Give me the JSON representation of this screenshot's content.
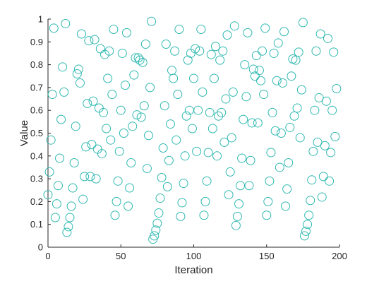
{
  "chart_data": {
    "type": "scatter",
    "title": "",
    "xlabel": "Iteration",
    "ylabel": "Value",
    "xlim": [
      0,
      200
    ],
    "ylim": [
      0,
      1
    ],
    "xticks": [
      "0",
      "50",
      "100",
      "150",
      "200"
    ],
    "yticks": [
      "0",
      "0.1",
      "0.2",
      "0.3",
      "0.4",
      "0.5",
      "0.6",
      "0.7",
      "0.8",
      "0.9",
      "1"
    ],
    "grid": false,
    "marker": "open-circle",
    "color": "#2fb8b0",
    "series": [
      {
        "points": [
          [
            0,
            0.23
          ],
          [
            1,
            0.33
          ],
          [
            2,
            0.47
          ],
          [
            3,
            0.67
          ],
          [
            4,
            0.96
          ],
          [
            5,
            0.13
          ],
          [
            6,
            0.19
          ],
          [
            7,
            0.27
          ],
          [
            8,
            0.39
          ],
          [
            9,
            0.56
          ],
          [
            10,
            0.79
          ],
          [
            11,
            0.68
          ],
          [
            12,
            0.98
          ],
          [
            13,
            0.065
          ],
          [
            14,
            0.09
          ],
          [
            15,
            0.13
          ],
          [
            16,
            0.18
          ],
          [
            17,
            0.26
          ],
          [
            18,
            0.37
          ],
          [
            19,
            0.53
          ],
          [
            20,
            0.76
          ],
          [
            21,
            0.78
          ],
          [
            22,
            0.72
          ],
          [
            23,
            0.935
          ],
          [
            24,
            0.21
          ],
          [
            25,
            0.31
          ],
          [
            26,
            0.44
          ],
          [
            27,
            0.63
          ],
          [
            28,
            0.905
          ],
          [
            29,
            0.31
          ],
          [
            30,
            0.45
          ],
          [
            31,
            0.64
          ],
          [
            32,
            0.91
          ],
          [
            33,
            0.3
          ],
          [
            34,
            0.43
          ],
          [
            35,
            0.61
          ],
          [
            36,
            0.87
          ],
          [
            37,
            0.41
          ],
          [
            38,
            0.59
          ],
          [
            39,
            0.845
          ],
          [
            40,
            0.52
          ],
          [
            41,
            0.74
          ],
          [
            42,
            0.86
          ],
          [
            43,
            0.47
          ],
          [
            44,
            0.67
          ],
          [
            45,
            0.955
          ],
          [
            46,
            0.14
          ],
          [
            47,
            0.2
          ],
          [
            48,
            0.29
          ],
          [
            49,
            0.42
          ],
          [
            50,
            0.6
          ],
          [
            51,
            0.85
          ],
          [
            52,
            0.5
          ],
          [
            53,
            0.71
          ],
          [
            54,
            0.94
          ],
          [
            55,
            0.18
          ],
          [
            56,
            0.26
          ],
          [
            57,
            0.37
          ],
          [
            58,
            0.53
          ],
          [
            59,
            0.755
          ],
          [
            60,
            0.83
          ],
          [
            61,
            0.58
          ],
          [
            62,
            0.83
          ],
          [
            63,
            0.82
          ],
          [
            64,
            0.57
          ],
          [
            65,
            0.81
          ],
          [
            66,
            0.62
          ],
          [
            67,
            0.89
          ],
          [
            68,
            0.345
          ],
          [
            69,
            0.49
          ],
          [
            70,
            0.7
          ],
          [
            71,
            0.99
          ],
          [
            72,
            0.035
          ],
          [
            73,
            0.05
          ],
          [
            74,
            0.075
          ],
          [
            75,
            0.105
          ],
          [
            76,
            0.15
          ],
          [
            77,
            0.215
          ],
          [
            78,
            0.305
          ],
          [
            79,
            0.435
          ],
          [
            80,
            0.62
          ],
          [
            81,
            0.89
          ],
          [
            82,
            0.265
          ],
          [
            83,
            0.38
          ],
          [
            84,
            0.54
          ],
          [
            85,
            0.775
          ],
          [
            86,
            0.74
          ],
          [
            87,
            0.86
          ],
          [
            88,
            0.47
          ],
          [
            89,
            0.67
          ],
          [
            90,
            0.955
          ],
          [
            91,
            0.135
          ],
          [
            92,
            0.195
          ],
          [
            93,
            0.28
          ],
          [
            94,
            0.4
          ],
          [
            95,
            0.575
          ],
          [
            96,
            0.82
          ],
          [
            97,
            0.6
          ],
          [
            98,
            0.85
          ],
          [
            99,
            0.52
          ],
          [
            100,
            0.74
          ],
          [
            101,
            0.87
          ],
          [
            102,
            0.42
          ],
          [
            103,
            0.6
          ],
          [
            104,
            0.86
          ],
          [
            105,
            0.955
          ],
          [
            106,
            0.68
          ],
          [
            107,
            0.14
          ],
          [
            108,
            0.2
          ],
          [
            109,
            0.29
          ],
          [
            110,
            0.415
          ],
          [
            111,
            0.59
          ],
          [
            112,
            0.845
          ],
          [
            113,
            0.52
          ],
          [
            114,
            0.74
          ],
          [
            115,
            0.88
          ],
          [
            116,
            0.4
          ],
          [
            117,
            0.575
          ],
          [
            118,
            0.82
          ],
          [
            119,
            0.59
          ],
          [
            120,
            0.86
          ],
          [
            121,
            0.46
          ],
          [
            122,
            0.65
          ],
          [
            123,
            0.93
          ],
          [
            124,
            0.23
          ],
          [
            125,
            0.33
          ],
          [
            126,
            0.48
          ],
          [
            127,
            0.68
          ],
          [
            128,
            0.97
          ],
          [
            129,
            0.095
          ],
          [
            130,
            0.135
          ],
          [
            131,
            0.19
          ],
          [
            132,
            0.27
          ],
          [
            133,
            0.39
          ],
          [
            134,
            0.56
          ],
          [
            135,
            0.8
          ],
          [
            136,
            0.66
          ],
          [
            137,
            0.94
          ],
          [
            138,
            0.27
          ],
          [
            139,
            0.38
          ],
          [
            140,
            0.545
          ],
          [
            141,
            0.78
          ],
          [
            142,
            0.75
          ],
          [
            143,
            0.84
          ],
          [
            144,
            0.545
          ],
          [
            145,
            0.775
          ],
          [
            146,
            0.73
          ],
          [
            147,
            0.86
          ],
          [
            148,
            0.67
          ],
          [
            149,
            0.96
          ],
          [
            150,
            0.14
          ],
          [
            151,
            0.2
          ],
          [
            152,
            0.29
          ],
          [
            153,
            0.415
          ],
          [
            154,
            0.59
          ],
          [
            155,
            0.85
          ],
          [
            156,
            0.51
          ],
          [
            157,
            0.73
          ],
          [
            158,
            0.895
          ],
          [
            159,
            0.35
          ],
          [
            160,
            0.5
          ],
          [
            161,
            0.72
          ],
          [
            162,
            0.945
          ],
          [
            163,
            0.18
          ],
          [
            164,
            0.255
          ],
          [
            165,
            0.37
          ],
          [
            166,
            0.525
          ],
          [
            167,
            0.75
          ],
          [
            168,
            0.825
          ],
          [
            169,
            0.575
          ],
          [
            170,
            0.82
          ],
          [
            171,
            0.61
          ],
          [
            172,
            0.855
          ],
          [
            173,
            0.48
          ],
          [
            174,
            0.69
          ],
          [
            175,
            0.985
          ],
          [
            176,
            0.05
          ],
          [
            177,
            0.07
          ],
          [
            178,
            0.1
          ],
          [
            179,
            0.14
          ],
          [
            180,
            0.205
          ],
          [
            181,
            0.295
          ],
          [
            182,
            0.42
          ],
          [
            183,
            0.6
          ],
          [
            184,
            0.86
          ],
          [
            185,
            0.46
          ],
          [
            186,
            0.655
          ],
          [
            187,
            0.935
          ],
          [
            188,
            0.22
          ],
          [
            189,
            0.31
          ],
          [
            190,
            0.445
          ],
          [
            191,
            0.64
          ],
          [
            192,
            0.915
          ],
          [
            193,
            0.29
          ],
          [
            194,
            0.415
          ],
          [
            195,
            0.6
          ],
          [
            196,
            0.855
          ],
          [
            197,
            0.485
          ],
          [
            198,
            0.695
          ]
        ]
      }
    ]
  }
}
